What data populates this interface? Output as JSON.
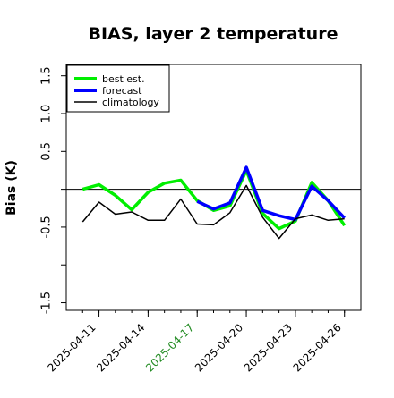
{
  "chart_data": {
    "type": "line",
    "title": "BIAS, layer 2 temperature",
    "xlabel": "",
    "ylabel": "Bias (K)",
    "ylim": [
      -1.6,
      1.65
    ],
    "xlim": [
      "2025-04-09",
      "2025-04-27"
    ],
    "reference_line": 0,
    "grid": false,
    "legend_position": "top-left",
    "y_ticks": [
      1.5,
      1.0,
      0.5,
      0,
      -0.5,
      -1.0,
      -1.5
    ],
    "y_tick_labels": [
      "1.5",
      "1.0",
      "0.5",
      "",
      "-0.5",
      "",
      "-1.5"
    ],
    "x_ticks": [
      "2025-04-11",
      "2025-04-14",
      "2025-04-17",
      "2025-04-20",
      "2025-04-23",
      "2025-04-26"
    ],
    "highlight_tick": "2025-04-17",
    "x": [
      "2025-04-10",
      "2025-04-11",
      "2025-04-12",
      "2025-04-13",
      "2025-04-14",
      "2025-04-15",
      "2025-04-16",
      "2025-04-17",
      "2025-04-18",
      "2025-04-19",
      "2025-04-20",
      "2025-04-21",
      "2025-04-22",
      "2025-04-23",
      "2025-04-24",
      "2025-04-25",
      "2025-04-26"
    ],
    "series": [
      {
        "name": "best est.",
        "color": "#00ee00",
        "values": [
          0.0,
          0.06,
          -0.08,
          -0.27,
          -0.04,
          0.08,
          0.12,
          -0.15,
          -0.28,
          -0.22,
          0.25,
          -0.32,
          -0.52,
          -0.42,
          0.09,
          -0.15,
          -0.48
        ]
      },
      {
        "name": "forecast",
        "color": "#0000ff",
        "values": [
          null,
          null,
          null,
          null,
          null,
          null,
          null,
          -0.16,
          -0.26,
          -0.18,
          0.29,
          -0.28,
          -0.35,
          -0.4,
          0.04,
          -0.15,
          -0.38
        ]
      },
      {
        "name": "climatology",
        "color": "#000000",
        "values": [
          -0.43,
          -0.17,
          -0.33,
          -0.3,
          -0.41,
          -0.41,
          -0.13,
          -0.46,
          -0.47,
          -0.31,
          0.05,
          -0.37,
          -0.65,
          -0.39,
          -0.34,
          -0.41,
          -0.39
        ]
      }
    ]
  }
}
